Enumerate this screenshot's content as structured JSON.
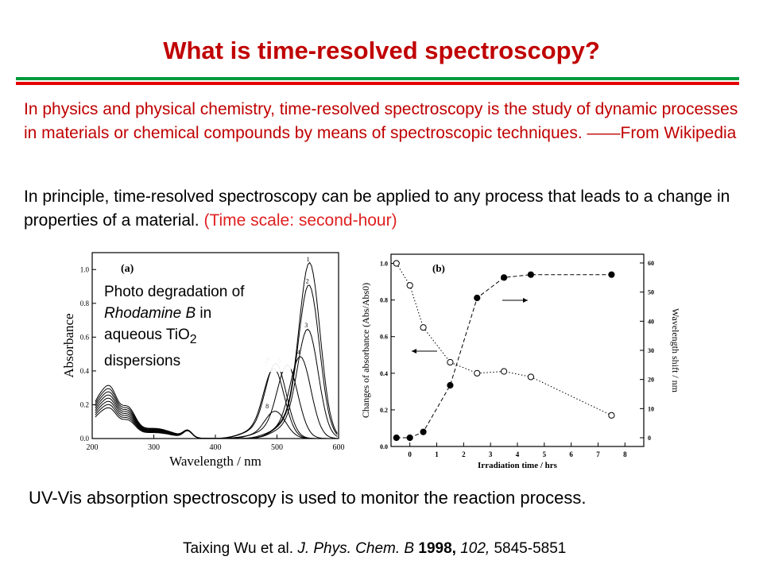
{
  "slide": {
    "title": "What is time-resolved spectroscopy?",
    "colors": {
      "title": "#c00000",
      "rule_red": "#e30000",
      "rule_green": "#009a3c"
    },
    "definition_text": "In physics and physical chemistry, time-resolved spectroscopy is the study of dynamic processes in materials or chemical compounds by means of spectroscopic techniques. ——From Wikipedia",
    "principle_text": "In principle, time-resolved spectroscopy can be applied to any process that leads to a change in properties of a material.",
    "principle_note": "(Time scale: second-hour)",
    "inset": {
      "line1": "Photo degradation of",
      "italic": "Rhodamine B",
      "after_italic": " in",
      "line3a": "aqueous TiO",
      "sub": "2",
      "line4": "dispersions"
    },
    "caption": "UV-Vis absorption spectroscopy is used to monitor the reaction process.",
    "citation": {
      "authors": "Taixing Wu et al. ",
      "journal": "J. Phys. Chem. B",
      "year": " 1998,",
      "volume": " 102,",
      "pages": " 5845-5851"
    }
  },
  "chart_data": [
    {
      "type": "line",
      "panel_label": "(a)",
      "xlabel": "Wavelength / nm",
      "ylabel": "Absorbance",
      "xlim": [
        200,
        600
      ],
      "ylim": [
        0.0,
        1.1
      ],
      "xticks": [
        "200",
        "300",
        "400",
        "500",
        "600"
      ],
      "yticks": [
        "0.0",
        "0.2",
        "0.4",
        "0.6",
        "0.8",
        "1.0"
      ],
      "series": [
        {
          "name": "1",
          "peak_x": 553,
          "peak_y": 1.03
        },
        {
          "name": "2",
          "peak_x": 552,
          "peak_y": 0.9
        },
        {
          "name": "3",
          "peak_x": 550,
          "peak_y": 0.64
        },
        {
          "name": "4",
          "peak_x": 538,
          "peak_y": 0.48
        },
        {
          "name": "5",
          "peak_x": 517,
          "peak_y": 0.43
        },
        {
          "name": "6",
          "peak_x": 498,
          "peak_y": 0.44
        },
        {
          "name": "7",
          "peak_x": 495,
          "peak_y": 0.41
        },
        {
          "name": "8",
          "peak_x": 497,
          "peak_y": 0.16
        }
      ]
    },
    {
      "type": "line",
      "panel_label": "(b)",
      "xlabel": "Irradiation time / hrs",
      "ylabel": "Changes of absorbance (Abs/Abs0)",
      "y2label": "Wavelength shift / nm",
      "xlim": [
        -0.7,
        8.7
      ],
      "ylim": [
        0.0,
        1.05
      ],
      "y2lim": [
        -3,
        63
      ],
      "xticks": [
        "0",
        "1",
        "2",
        "3",
        "4",
        "5",
        "6",
        "7",
        "8"
      ],
      "yticks": [
        "0.0",
        "0.2",
        "0.4",
        "0.6",
        "0.8",
        "1.0"
      ],
      "y2ticks": [
        "0",
        "10",
        "20",
        "30",
        "40",
        "50",
        "60"
      ],
      "series": [
        {
          "name": "Abs/Abs0",
          "style": "open-circle-dotted",
          "axis": "left",
          "x": [
            -0.5,
            0,
            0.5,
            1.5,
            2.5,
            3.5,
            4.5,
            7.5
          ],
          "y": [
            1.0,
            0.88,
            0.65,
            0.46,
            0.4,
            0.41,
            0.38,
            0.17
          ]
        },
        {
          "name": "Wavelength shift",
          "style": "filled-circle-dashed",
          "axis": "right",
          "x": [
            -0.5,
            0,
            0.5,
            1.5,
            2.5,
            3.5,
            4.5,
            7.5
          ],
          "y": [
            0,
            0,
            2,
            18,
            48,
            55,
            56,
            56
          ]
        }
      ]
    }
  ]
}
